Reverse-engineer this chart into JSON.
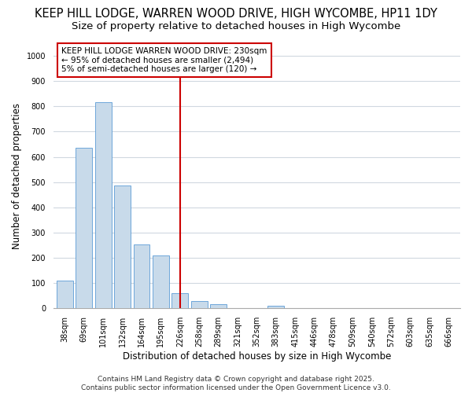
{
  "title": "KEEP HILL LODGE, WARREN WOOD DRIVE, HIGH WYCOMBE, HP11 1DY",
  "subtitle": "Size of property relative to detached houses in High Wycombe",
  "xlabel": "Distribution of detached houses by size in High Wycombe",
  "ylabel": "Number of detached properties",
  "categories": [
    "38sqm",
    "69sqm",
    "101sqm",
    "132sqm",
    "164sqm",
    "195sqm",
    "226sqm",
    "258sqm",
    "289sqm",
    "321sqm",
    "352sqm",
    "383sqm",
    "415sqm",
    "446sqm",
    "478sqm",
    "509sqm",
    "540sqm",
    "572sqm",
    "603sqm",
    "635sqm",
    "666sqm"
  ],
  "values": [
    110,
    635,
    815,
    487,
    253,
    210,
    60,
    28,
    15,
    0,
    0,
    9,
    0,
    0,
    0,
    0,
    0,
    0,
    0,
    0,
    0
  ],
  "bar_color": "#c8daea",
  "bar_edge_color": "#5b9bd5",
  "vline_index": 6,
  "vline_color": "#cc0000",
  "annotation_title": "KEEP HILL LODGE WARREN WOOD DRIVE: 230sqm",
  "annotation_line1": "← 95% of detached houses are smaller (2,494)",
  "annotation_line2": "5% of semi-detached houses are larger (120) →",
  "annotation_box_color": "#cc0000",
  "ylim": [
    0,
    1050
  ],
  "yticks": [
    0,
    100,
    200,
    300,
    400,
    500,
    600,
    700,
    800,
    900,
    1000
  ],
  "footer_line1": "Contains HM Land Registry data © Crown copyright and database right 2025.",
  "footer_line2": "Contains public sector information licensed under the Open Government Licence v3.0.",
  "bg_color": "#ffffff",
  "plot_bg_color": "#ffffff",
  "title_fontsize": 10.5,
  "subtitle_fontsize": 9.5,
  "axis_label_fontsize": 8.5,
  "tick_fontsize": 7,
  "footer_fontsize": 6.5,
  "annotation_fontsize": 7.5
}
